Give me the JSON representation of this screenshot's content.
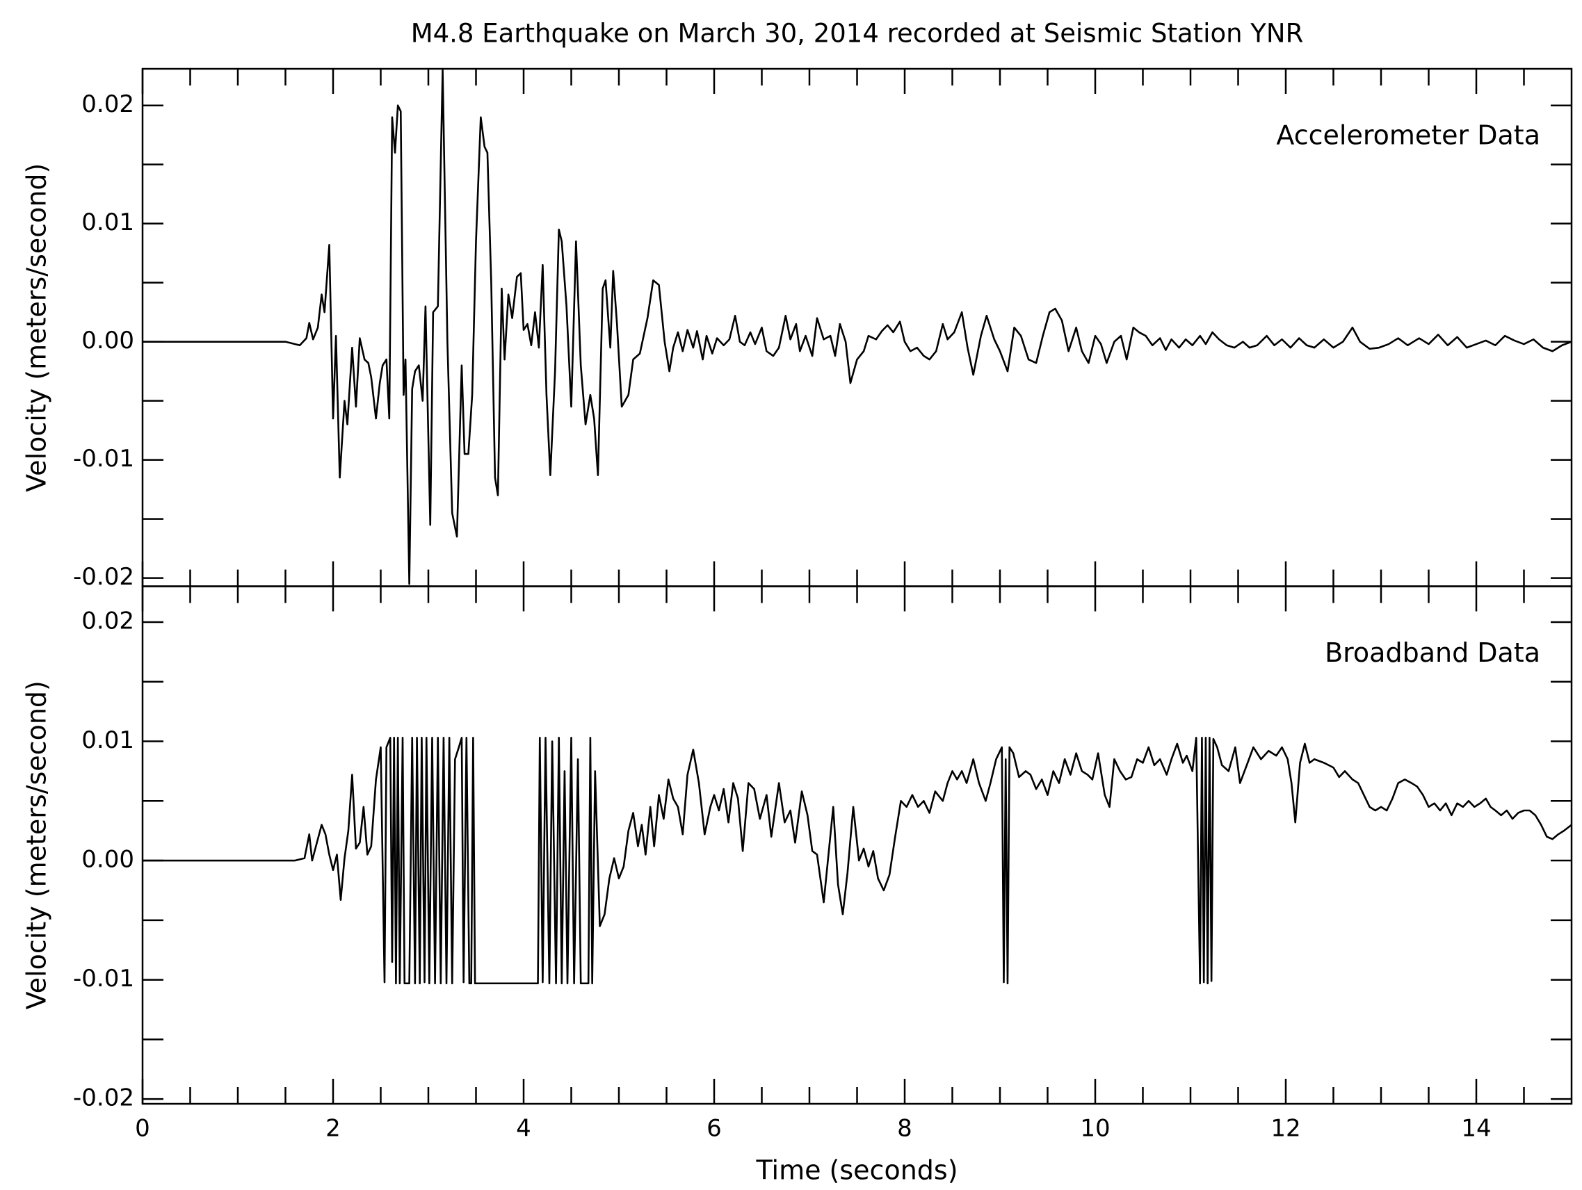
{
  "chart_data": [
    {
      "type": "line",
      "title": "M4.8 Earthquake on March 30, 2014 recorded at Seismic Station YNR",
      "ylabel": "Velocity (meters/second)",
      "annotation": "Accelerometer Data",
      "color": "#000000",
      "xticklabels": false,
      "xlim": [
        0,
        15
      ],
      "xticks": [
        0,
        2,
        4,
        6,
        8,
        10,
        12,
        14
      ],
      "xminorticks": [
        0.5,
        1,
        1.5,
        2.5,
        3,
        3.5,
        4.5,
        5,
        5.5,
        6.5,
        7,
        7.5,
        8.5,
        9,
        9.5,
        10.5,
        11,
        11.5,
        12.5,
        13,
        13.5,
        14.5
      ],
      "ylim": [
        -0.0207,
        0.0231
      ],
      "yticks": [
        -0.02,
        -0.01,
        {
          "value": 0,
          "label": "0.00"
        },
        0.01,
        0.02
      ],
      "yminorticks": [
        -0.015,
        -0.005,
        0.005,
        0.015
      ],
      "x": [
        0,
        1.5,
        1.65,
        1.72,
        1.75,
        1.79,
        1.84,
        1.88,
        1.91,
        1.96,
        2.0,
        2.03,
        2.07,
        2.12,
        2.15,
        2.2,
        2.24,
        2.28,
        2.33,
        2.37,
        2.4,
        2.45,
        2.49,
        2.52,
        2.56,
        2.59,
        2.62,
        2.65,
        2.68,
        2.71,
        2.74,
        2.76,
        2.8,
        2.83,
        2.86,
        2.9,
        2.94,
        2.97,
        3.02,
        3.05,
        3.1,
        3.15,
        3.2,
        3.25,
        3.3,
        3.35,
        3.38,
        3.42,
        3.46,
        3.5,
        3.55,
        3.59,
        3.62,
        3.66,
        3.7,
        3.73,
        3.77,
        3.8,
        3.84,
        3.88,
        3.93,
        3.97,
        4.0,
        4.04,
        4.08,
        4.12,
        4.16,
        4.2,
        4.24,
        4.28,
        4.33,
        4.37,
        4.4,
        4.45,
        4.5,
        4.55,
        4.6,
        4.65,
        4.7,
        4.74,
        4.78,
        4.83,
        4.86,
        4.91,
        4.94,
        4.98,
        5.03,
        5.1,
        5.15,
        5.22,
        5.3,
        5.36,
        5.42,
        5.48,
        5.53,
        5.57,
        5.62,
        5.67,
        5.72,
        5.78,
        5.82,
        5.88,
        5.92,
        5.98,
        6.03,
        6.1,
        6.16,
        6.22,
        6.27,
        6.32,
        6.38,
        6.43,
        6.5,
        6.55,
        6.62,
        6.68,
        6.75,
        6.8,
        6.86,
        6.9,
        6.96,
        7.03,
        7.08,
        7.15,
        7.22,
        7.27,
        7.32,
        7.38,
        7.43,
        7.5,
        7.57,
        7.62,
        7.7,
        7.76,
        7.82,
        7.88,
        7.95,
        8.0,
        8.06,
        8.13,
        8.2,
        8.26,
        8.33,
        8.4,
        8.45,
        8.52,
        8.6,
        8.66,
        8.72,
        8.8,
        8.86,
        8.94,
        9.0,
        9.08,
        9.15,
        9.22,
        9.3,
        9.38,
        9.45,
        9.52,
        9.58,
        9.65,
        9.72,
        9.8,
        9.86,
        9.93,
        10.0,
        10.06,
        10.12,
        10.2,
        10.27,
        10.33,
        10.4,
        10.46,
        10.53,
        10.6,
        10.68,
        10.74,
        10.8,
        10.88,
        10.95,
        11.02,
        11.1,
        11.16,
        11.23,
        11.3,
        11.38,
        11.46,
        11.55,
        11.62,
        11.7,
        11.8,
        11.88,
        11.96,
        12.05,
        12.14,
        12.22,
        12.3,
        12.4,
        12.5,
        12.6,
        12.7,
        12.78,
        12.88,
        12.98,
        13.08,
        13.18,
        13.28,
        13.4,
        13.5,
        13.6,
        13.7,
        13.8,
        13.9,
        14.0,
        14.1,
        14.2,
        14.3,
        14.4,
        14.5,
        14.6,
        14.7,
        14.8,
        14.9,
        15.0
      ],
      "values": [
        0,
        0,
        -0.0003,
        0.0003,
        0.0016,
        0.0002,
        0.0012,
        0.004,
        0.0025,
        0.0082,
        -0.0065,
        0.0005,
        -0.0115,
        -0.005,
        -0.007,
        -0.0005,
        -0.0055,
        0.0003,
        -0.0015,
        -0.0018,
        -0.003,
        -0.0065,
        -0.0035,
        -0.002,
        -0.0015,
        -0.0065,
        0.019,
        0.016,
        0.02,
        0.0195,
        -0.0045,
        -0.0015,
        -0.0205,
        -0.004,
        -0.0025,
        -0.002,
        -0.005,
        0.003,
        -0.0155,
        0.0025,
        0.003,
        0.023,
        0.0,
        -0.0145,
        -0.0165,
        -0.002,
        -0.0095,
        -0.0095,
        -0.0045,
        0.0085,
        0.019,
        0.0165,
        0.016,
        0.005,
        -0.0115,
        -0.013,
        0.0045,
        -0.0015,
        0.004,
        0.002,
        0.0055,
        0.0058,
        0.001,
        0.0015,
        -0.0003,
        0.0025,
        -0.0005,
        0.0065,
        -0.0045,
        -0.0113,
        -0.0025,
        0.0095,
        0.0085,
        0.003,
        -0.0055,
        0.0085,
        -0.002,
        -0.007,
        -0.0045,
        -0.0065,
        -0.0113,
        0.0045,
        0.0052,
        -0.0005,
        0.006,
        0.0015,
        -0.0055,
        -0.0045,
        -0.0015,
        -0.001,
        0.002,
        0.0052,
        0.0048,
        0.0,
        -0.0025,
        -0.0005,
        0.0008,
        -0.0008,
        0.001,
        -0.0005,
        0.0009,
        -0.0015,
        0.0005,
        -0.001,
        0.0003,
        -0.0003,
        0.0002,
        0.0022,
        0.0,
        -0.0003,
        0.0008,
        -0.0002,
        0.0012,
        -0.0008,
        -0.0012,
        -0.0005,
        0.0022,
        0.0002,
        0.0015,
        -0.0008,
        0.0005,
        -0.0012,
        0.002,
        0.0002,
        0.0005,
        -0.0012,
        0.0015,
        0.0,
        -0.0035,
        -0.0015,
        -0.0008,
        0.0005,
        0.0002,
        0.0009,
        0.0014,
        0.0008,
        0.0017,
        0.0,
        -0.0008,
        -0.0005,
        -0.0012,
        -0.0015,
        -0.0008,
        0.0015,
        0.0002,
        0.0008,
        0.0025,
        -0.0005,
        -0.0028,
        0.0005,
        0.0022,
        0.0002,
        -0.0008,
        -0.0025,
        0.0012,
        0.0005,
        -0.0015,
        -0.0018,
        0.0005,
        0.0025,
        0.0028,
        0.0018,
        -0.0008,
        0.0012,
        -0.0008,
        -0.0018,
        0.0005,
        -0.0002,
        -0.0018,
        0.0,
        0.0005,
        -0.0015,
        0.0012,
        0.0008,
        0.0005,
        -0.0003,
        0.0003,
        -0.0007,
        0.0002,
        -0.0005,
        0.0002,
        -0.0003,
        0.0005,
        -0.0002,
        0.0008,
        0.0002,
        -0.0003,
        -0.0005,
        0.0,
        -0.0005,
        -0.0003,
        0.0005,
        -0.0003,
        0.0002,
        -0.0005,
        0.0003,
        -0.0003,
        -0.0005,
        0.0002,
        -0.0005,
        0.0,
        0.0012,
        0.0,
        -0.0006,
        -0.0005,
        -0.0002,
        0.0003,
        -0.0003,
        0.0003,
        -0.0002,
        0.0006,
        -0.0003,
        0.0004,
        -0.0005,
        -0.0002,
        0.0001,
        -0.0003,
        0.0005,
        0.0001,
        -0.0002,
        0.0002,
        -0.0005,
        -0.0008,
        -0.0003,
        0
      ]
    },
    {
      "type": "line",
      "xlabel": "Time (seconds)",
      "ylabel": "Velocity (meters/second)",
      "annotation": "Broadband Data",
      "color": "#000000",
      "xticklabels": true,
      "xlim": [
        0,
        15
      ],
      "xticks": [
        0,
        2,
        4,
        6,
        8,
        10,
        12,
        14
      ],
      "xminorticks": [
        0.5,
        1,
        1.5,
        2.5,
        3,
        3.5,
        4.5,
        5,
        5.5,
        6.5,
        7,
        7.5,
        8.5,
        9,
        9.5,
        10.5,
        11,
        11.5,
        12.5,
        13,
        13.5,
        14.5
      ],
      "ylim": [
        -0.0204,
        0.023
      ],
      "yticks": [
        -0.02,
        -0.01,
        {
          "value": 0,
          "label": "0.00"
        },
        0.01,
        0.02
      ],
      "yminorticks": [
        -0.015,
        -0.005,
        0.005,
        0.015
      ],
      "x": [
        0,
        1.6,
        1.7,
        1.75,
        1.78,
        1.83,
        1.88,
        1.92,
        1.96,
        2.0,
        2.04,
        2.08,
        2.12,
        2.16,
        2.2,
        2.24,
        2.28,
        2.32,
        2.36,
        2.4,
        2.45,
        2.5,
        2.54,
        2.56,
        2.6,
        2.62,
        2.64,
        2.66,
        2.68,
        2.7,
        2.73,
        2.75,
        2.8,
        2.83,
        2.86,
        2.88,
        2.91,
        2.93,
        2.96,
        2.98,
        3.01,
        3.04,
        3.07,
        3.1,
        3.13,
        3.16,
        3.19,
        3.22,
        3.25,
        3.28,
        3.32,
        3.35,
        3.37,
        3.4,
        3.43,
        3.45,
        3.47,
        3.49,
        3.6,
        4.1,
        4.15,
        4.17,
        4.2,
        4.23,
        4.27,
        4.3,
        4.34,
        4.37,
        4.4,
        4.43,
        4.46,
        4.5,
        4.53,
        4.57,
        4.6,
        4.68,
        4.7,
        4.72,
        4.75,
        4.8,
        4.85,
        4.9,
        4.95,
        5.0,
        5.05,
        5.1,
        5.15,
        5.2,
        5.24,
        5.28,
        5.33,
        5.37,
        5.42,
        5.47,
        5.52,
        5.57,
        5.62,
        5.67,
        5.72,
        5.78,
        5.84,
        5.9,
        5.96,
        6.0,
        6.05,
        6.1,
        6.15,
        6.2,
        6.25,
        6.3,
        6.36,
        6.42,
        6.48,
        6.55,
        6.6,
        6.68,
        6.74,
        6.8,
        6.85,
        6.92,
        6.98,
        7.03,
        7.08,
        7.15,
        7.2,
        7.25,
        7.3,
        7.35,
        7.4,
        7.46,
        7.52,
        7.57,
        7.62,
        7.67,
        7.72,
        7.78,
        7.84,
        7.9,
        7.96,
        8.02,
        8.08,
        8.14,
        8.2,
        8.26,
        8.32,
        8.4,
        8.45,
        8.5,
        8.55,
        8.6,
        8.65,
        8.72,
        8.78,
        8.85,
        8.9,
        8.96,
        9.02,
        9.04,
        9.06,
        9.08,
        9.1,
        9.14,
        9.2,
        9.27,
        9.32,
        9.38,
        9.44,
        9.5,
        9.56,
        9.62,
        9.68,
        9.74,
        9.8,
        9.86,
        9.92,
        9.97,
        10.03,
        10.1,
        10.15,
        10.2,
        10.26,
        10.32,
        10.38,
        10.44,
        10.5,
        10.56,
        10.62,
        10.68,
        10.75,
        10.8,
        10.86,
        10.92,
        10.96,
        11.02,
        11.06,
        11.1,
        11.12,
        11.14,
        11.16,
        11.18,
        11.2,
        11.22,
        11.24,
        11.28,
        11.33,
        11.4,
        11.47,
        11.52,
        11.6,
        11.66,
        11.74,
        11.82,
        11.9,
        11.96,
        12.02,
        12.06,
        12.1,
        12.15,
        12.2,
        12.25,
        12.3,
        12.4,
        12.5,
        12.56,
        12.62,
        12.7,
        12.76,
        12.82,
        12.88,
        12.94,
        13.0,
        13.06,
        13.12,
        13.18,
        13.25,
        13.32,
        13.38,
        13.44,
        13.5,
        13.56,
        13.62,
        13.68,
        13.74,
        13.8,
        13.86,
        13.92,
        13.98,
        14.04,
        14.1,
        14.15,
        14.2,
        14.26,
        14.32,
        14.38,
        14.44,
        14.5,
        14.56,
        14.62,
        14.68,
        14.74,
        14.8,
        14.86,
        14.92,
        15.0
      ],
      "values": [
        0,
        0,
        0.0002,
        0.0022,
        0.0,
        0.0015,
        0.003,
        0.0022,
        0.0005,
        -0.0008,
        0.0005,
        -0.0033,
        0.0002,
        0.0025,
        0.0072,
        0.001,
        0.0015,
        0.0045,
        0.0005,
        0.0012,
        0.0068,
        0.0095,
        -0.0102,
        0.0095,
        0.0103,
        -0.0085,
        0.0103,
        -0.0103,
        0.0103,
        -0.0103,
        0.0103,
        -0.0103,
        -0.0103,
        0.0103,
        -0.0103,
        0.0103,
        -0.0103,
        0.0103,
        -0.0102,
        0.0103,
        -0.0103,
        0.0103,
        -0.0103,
        0.0103,
        -0.0103,
        0.0103,
        -0.0103,
        0.0103,
        -0.0103,
        0.0085,
        0.0095,
        0.0103,
        -0.0102,
        0.0103,
        -0.0103,
        -0.0103,
        0.0103,
        -0.0103,
        -0.0103,
        -0.0103,
        -0.0103,
        0.0103,
        -0.0102,
        0.0103,
        -0.0103,
        0.01,
        -0.0103,
        0.0103,
        -0.0103,
        0.0075,
        -0.0103,
        0.0103,
        -0.0103,
        0.0085,
        -0.0103,
        -0.0103,
        0.0103,
        -0.0103,
        0.0075,
        -0.0055,
        -0.0045,
        -0.0015,
        0.0002,
        -0.0015,
        -0.0005,
        0.0025,
        0.004,
        0.0012,
        0.003,
        0.0005,
        0.0045,
        0.0012,
        0.0055,
        0.0035,
        0.0068,
        0.0052,
        0.0045,
        0.0022,
        0.0072,
        0.0093,
        0.0065,
        0.0022,
        0.0045,
        0.0055,
        0.0042,
        0.006,
        0.0032,
        0.0065,
        0.0052,
        0.0008,
        0.0065,
        0.006,
        0.0035,
        0.0055,
        0.002,
        0.0065,
        0.0032,
        0.0042,
        0.0015,
        0.0058,
        0.0038,
        0.0008,
        0.0005,
        -0.0035,
        0.0005,
        0.0045,
        -0.002,
        -0.0045,
        -0.001,
        0.0045,
        0.0,
        0.001,
        -0.0005,
        0.0008,
        -0.0015,
        -0.0025,
        -0.0012,
        0.002,
        0.005,
        0.0045,
        0.0055,
        0.0045,
        0.005,
        0.004,
        0.0058,
        0.005,
        0.0065,
        0.0075,
        0.0068,
        0.0075,
        0.0065,
        0.0085,
        0.0065,
        0.005,
        0.0065,
        0.0085,
        0.0095,
        -0.0102,
        0.0085,
        -0.0103,
        0.0095,
        0.009,
        0.007,
        0.0075,
        0.0072,
        0.006,
        0.0068,
        0.0055,
        0.0075,
        0.0065,
        0.0085,
        0.0072,
        0.009,
        0.0075,
        0.0072,
        0.0068,
        0.009,
        0.0055,
        0.0045,
        0.0085,
        0.0075,
        0.0068,
        0.007,
        0.0085,
        0.0082,
        0.0095,
        0.008,
        0.0085,
        0.0072,
        0.0085,
        0.0098,
        0.0082,
        0.0088,
        0.0075,
        0.0103,
        -0.0103,
        0.0103,
        -0.0102,
        0.0103,
        -0.0103,
        0.0103,
        -0.0101,
        0.0102,
        0.0095,
        0.008,
        0.0075,
        0.0095,
        0.0065,
        0.0082,
        0.0095,
        0.0085,
        0.0092,
        0.0088,
        0.0095,
        0.0085,
        0.0065,
        0.0032,
        0.0082,
        0.0098,
        0.0082,
        0.0085,
        0.0082,
        0.0078,
        0.007,
        0.0075,
        0.0068,
        0.0065,
        0.0055,
        0.0045,
        0.0042,
        0.0045,
        0.0042,
        0.0052,
        0.0065,
        0.0068,
        0.0065,
        0.0062,
        0.0055,
        0.0045,
        0.0048,
        0.0042,
        0.0048,
        0.0038,
        0.0048,
        0.0045,
        0.005,
        0.0045,
        0.0048,
        0.0052,
        0.0045,
        0.0042,
        0.0038,
        0.0042,
        0.0035,
        0.004,
        0.0042,
        0.0042,
        0.0038,
        0.003,
        0.002,
        0.0018,
        0.0022,
        0.0025,
        0.003
      ]
    }
  ]
}
